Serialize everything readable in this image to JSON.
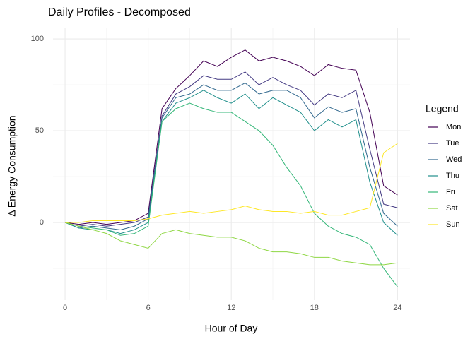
{
  "chart_data": {
    "type": "line",
    "title": "Daily Profiles - Decomposed",
    "x_label": "Hour of Day",
    "y_label": "Δ Energy Consumption",
    "legend_title": "Legend",
    "legend_position": "right",
    "x": [
      0,
      1,
      2,
      3,
      4,
      5,
      6,
      7,
      8,
      9,
      10,
      11,
      12,
      13,
      14,
      15,
      16,
      17,
      18,
      19,
      20,
      21,
      22,
      23,
      24
    ],
    "series": [
      {
        "name": "Mon",
        "color": "#440154",
        "values": [
          0,
          -1,
          0,
          -1,
          0,
          1,
          5,
          62,
          73,
          80,
          88,
          85,
          90,
          94,
          88,
          90,
          88,
          85,
          80,
          86,
          84,
          83,
          60,
          20,
          15
        ]
      },
      {
        "name": "Tue",
        "color": "#443A83",
        "values": [
          0,
          -2,
          -1,
          -2,
          -1,
          0,
          3,
          58,
          70,
          74,
          80,
          78,
          78,
          82,
          75,
          79,
          75,
          72,
          64,
          70,
          68,
          72,
          40,
          10,
          8
        ]
      },
      {
        "name": "Wed",
        "color": "#31688E",
        "values": [
          0,
          -3,
          -2,
          -3,
          -4,
          -2,
          2,
          57,
          68,
          70,
          75,
          72,
          72,
          76,
          70,
          72,
          72,
          68,
          57,
          63,
          60,
          62,
          30,
          5,
          -2
        ]
      },
      {
        "name": "Thu",
        "color": "#21908C",
        "values": [
          0,
          -3,
          -4,
          -4,
          -6,
          -4,
          0,
          55,
          65,
          68,
          72,
          68,
          65,
          70,
          62,
          68,
          64,
          60,
          50,
          56,
          52,
          56,
          22,
          0,
          -7
        ]
      },
      {
        "name": "Fri",
        "color": "#35B779",
        "values": [
          0,
          -2,
          -3,
          -4,
          -7,
          -6,
          -2,
          55,
          62,
          65,
          62,
          60,
          60,
          55,
          50,
          42,
          30,
          20,
          5,
          -2,
          -6,
          -8,
          -12,
          -25,
          -35
        ]
      },
      {
        "name": "Sat",
        "color": "#8FD744",
        "values": [
          0,
          -2,
          -4,
          -6,
          -10,
          -12,
          -14,
          -6,
          -4,
          -6,
          -7,
          -8,
          -8,
          -10,
          -14,
          -16,
          -16,
          -17,
          -19,
          -19,
          -21,
          -22,
          -23,
          -23,
          -22
        ]
      },
      {
        "name": "Sun",
        "color": "#FDE725",
        "values": [
          0,
          0,
          1,
          1,
          1,
          1,
          2,
          4,
          5,
          6,
          5,
          6,
          7,
          9,
          7,
          6,
          6,
          5,
          6,
          4,
          4,
          6,
          8,
          38,
          43
        ]
      }
    ],
    "xlim": [
      -0.87,
      24.9
    ],
    "ylim": [
      -42.3,
      105.8
    ],
    "xticks": [
      0,
      6,
      12,
      18,
      24
    ],
    "yticks": [
      0,
      50,
      100
    ],
    "minor_xticks": [
      3,
      9,
      15,
      21
    ],
    "minor_yticks": [
      -25,
      25,
      75
    ],
    "grid": true
  }
}
